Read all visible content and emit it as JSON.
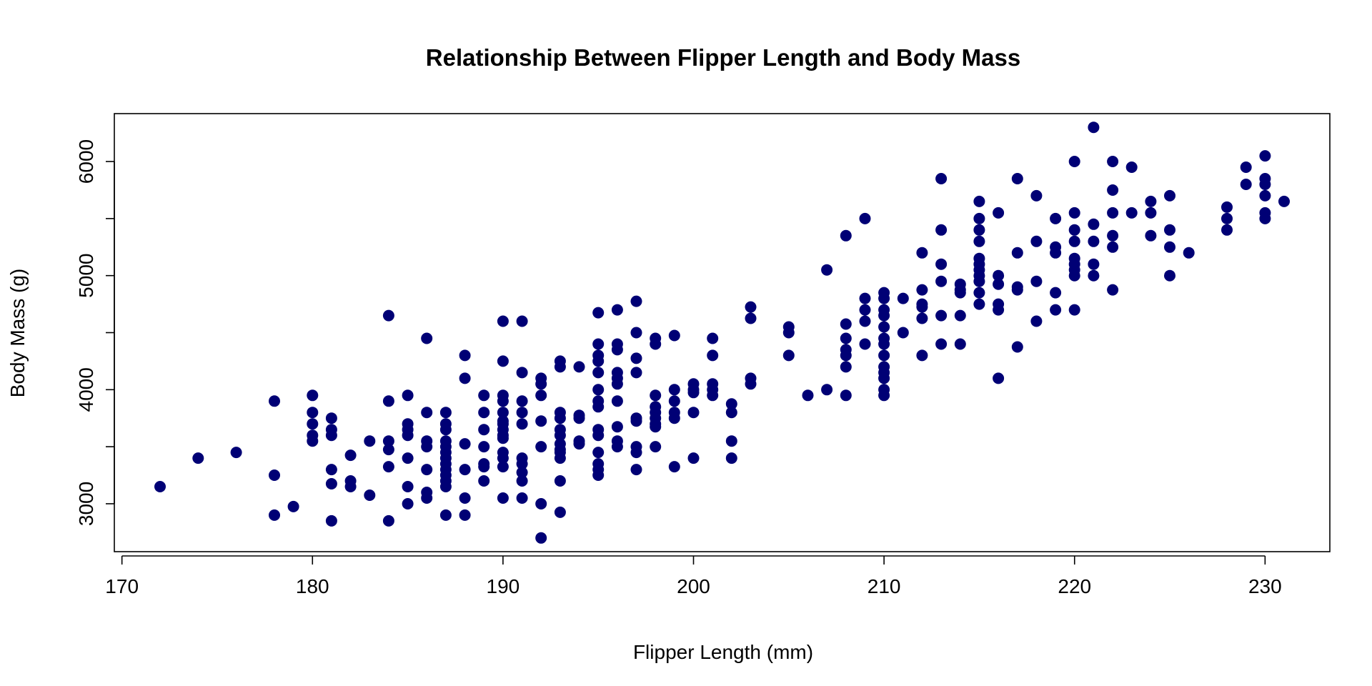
{
  "chart_data": {
    "type": "scatter",
    "title": "Relationship Between Flipper Length and Body Mass",
    "xlabel": "Flipper Length (mm)",
    "ylabel": "Body Mass (g)",
    "xlim": [
      169.6,
      233.4
    ],
    "ylim": [
      2580,
      6420
    ],
    "x_ticks": [
      170,
      180,
      190,
      200,
      210,
      220,
      230
    ],
    "y_ticks": [
      3000,
      4000,
      5000,
      6000
    ],
    "grid": false,
    "legend": "none",
    "marker_color": "#000075",
    "points": [
      [
        172,
        3150
      ],
      [
        174,
        3400
      ],
      [
        176,
        3450
      ],
      [
        178,
        3900
      ],
      [
        178,
        3250
      ],
      [
        178,
        2900
      ],
      [
        179,
        2975
      ],
      [
        180,
        3950
      ],
      [
        180,
        3800
      ],
      [
        180,
        3700
      ],
      [
        180,
        3600
      ],
      [
        180,
        3550
      ],
      [
        181,
        3750
      ],
      [
        181,
        3650
      ],
      [
        181,
        3600
      ],
      [
        181,
        3300
      ],
      [
        181,
        3175
      ],
      [
        181,
        2850
      ],
      [
        182,
        3425
      ],
      [
        182,
        3200
      ],
      [
        182,
        3150
      ],
      [
        183,
        3550
      ],
      [
        183,
        3075
      ],
      [
        184,
        4650
      ],
      [
        184,
        3900
      ],
      [
        184,
        3550
      ],
      [
        184,
        3475
      ],
      [
        184,
        3325
      ],
      [
        184,
        2850
      ],
      [
        185,
        3950
      ],
      [
        185,
        3700
      ],
      [
        185,
        3650
      ],
      [
        185,
        3600
      ],
      [
        185,
        3400
      ],
      [
        185,
        3150
      ],
      [
        185,
        3000
      ],
      [
        186,
        4450
      ],
      [
        186,
        3800
      ],
      [
        186,
        3550
      ],
      [
        186,
        3500
      ],
      [
        186,
        3300
      ],
      [
        186,
        3100
      ],
      [
        186,
        3050
      ],
      [
        187,
        3800
      ],
      [
        187,
        3700
      ],
      [
        187,
        3650
      ],
      [
        187,
        3550
      ],
      [
        187,
        3500
      ],
      [
        187,
        3450
      ],
      [
        187,
        3400
      ],
      [
        187,
        3350
      ],
      [
        187,
        3300
      ],
      [
        187,
        3250
      ],
      [
        187,
        3200
      ],
      [
        187,
        3150
      ],
      [
        187,
        2900
      ],
      [
        188,
        4300
      ],
      [
        188,
        4100
      ],
      [
        188,
        3525
      ],
      [
        188,
        3300
      ],
      [
        188,
        3050
      ],
      [
        188,
        2900
      ],
      [
        189,
        3950
      ],
      [
        189,
        3800
      ],
      [
        189,
        3650
      ],
      [
        189,
        3500
      ],
      [
        189,
        3350
      ],
      [
        189,
        3325
      ],
      [
        189,
        3200
      ],
      [
        190,
        4600
      ],
      [
        190,
        4250
      ],
      [
        190,
        3950
      ],
      [
        190,
        3900
      ],
      [
        190,
        3800
      ],
      [
        190,
        3725
      ],
      [
        190,
        3700
      ],
      [
        190,
        3650
      ],
      [
        190,
        3600
      ],
      [
        190,
        3575
      ],
      [
        190,
        3450
      ],
      [
        190,
        3400
      ],
      [
        190,
        3325
      ],
      [
        190,
        3050
      ],
      [
        191,
        4600
      ],
      [
        191,
        4150
      ],
      [
        191,
        3900
      ],
      [
        191,
        3800
      ],
      [
        191,
        3700
      ],
      [
        191,
        3400
      ],
      [
        191,
        3350
      ],
      [
        191,
        3275
      ],
      [
        191,
        3200
      ],
      [
        191,
        3050
      ],
      [
        192,
        4100
      ],
      [
        192,
        4050
      ],
      [
        192,
        3950
      ],
      [
        192,
        3725
      ],
      [
        192,
        3500
      ],
      [
        192,
        3000
      ],
      [
        192,
        2700
      ],
      [
        193,
        4250
      ],
      [
        193,
        4200
      ],
      [
        193,
        3800
      ],
      [
        193,
        3750
      ],
      [
        193,
        3650
      ],
      [
        193,
        3600
      ],
      [
        193,
        3525
      ],
      [
        193,
        3475
      ],
      [
        193,
        3450
      ],
      [
        193,
        3400
      ],
      [
        193,
        3200
      ],
      [
        193,
        2925
      ],
      [
        194,
        4200
      ],
      [
        194,
        3775
      ],
      [
        194,
        3750
      ],
      [
        194,
        3550
      ],
      [
        194,
        3525
      ],
      [
        195,
        4675
      ],
      [
        195,
        4400
      ],
      [
        195,
        4300
      ],
      [
        195,
        4250
      ],
      [
        195,
        4150
      ],
      [
        195,
        4000
      ],
      [
        195,
        3900
      ],
      [
        195,
        3850
      ],
      [
        195,
        3650
      ],
      [
        195,
        3600
      ],
      [
        195,
        3450
      ],
      [
        195,
        3350
      ],
      [
        195,
        3300
      ],
      [
        195,
        3250
      ],
      [
        196,
        4700
      ],
      [
        196,
        4400
      ],
      [
        196,
        4350
      ],
      [
        196,
        4150
      ],
      [
        196,
        4100
      ],
      [
        196,
        4050
      ],
      [
        196,
        3900
      ],
      [
        196,
        3675
      ],
      [
        196,
        3550
      ],
      [
        196,
        3500
      ],
      [
        197,
        4775
      ],
      [
        197,
        4500
      ],
      [
        197,
        4275
      ],
      [
        197,
        4150
      ],
      [
        197,
        3750
      ],
      [
        197,
        3725
      ],
      [
        197,
        3500
      ],
      [
        197,
        3450
      ],
      [
        197,
        3300
      ],
      [
        198,
        4450
      ],
      [
        198,
        4400
      ],
      [
        198,
        3950
      ],
      [
        198,
        3850
      ],
      [
        198,
        3800
      ],
      [
        198,
        3750
      ],
      [
        198,
        3700
      ],
      [
        198,
        3675
      ],
      [
        198,
        3500
      ],
      [
        199,
        4475
      ],
      [
        199,
        4000
      ],
      [
        199,
        3900
      ],
      [
        199,
        3800
      ],
      [
        199,
        3750
      ],
      [
        199,
        3325
      ],
      [
        200,
        4050
      ],
      [
        200,
        4000
      ],
      [
        200,
        3975
      ],
      [
        200,
        3800
      ],
      [
        200,
        3400
      ],
      [
        201,
        4450
      ],
      [
        201,
        4300
      ],
      [
        201,
        4050
      ],
      [
        201,
        4000
      ],
      [
        201,
        3950
      ],
      [
        202,
        3875
      ],
      [
        202,
        3800
      ],
      [
        202,
        3550
      ],
      [
        202,
        3400
      ],
      [
        203,
        4725
      ],
      [
        203,
        4625
      ],
      [
        203,
        4100
      ],
      [
        203,
        4050
      ],
      [
        205,
        4550
      ],
      [
        205,
        4500
      ],
      [
        205,
        4300
      ],
      [
        206,
        3950
      ],
      [
        207,
        5050
      ],
      [
        207,
        4000
      ],
      [
        208,
        5350
      ],
      [
        208,
        4575
      ],
      [
        208,
        4450
      ],
      [
        208,
        4350
      ],
      [
        208,
        4300
      ],
      [
        208,
        4200
      ],
      [
        208,
        3950
      ],
      [
        209,
        5500
      ],
      [
        209,
        4800
      ],
      [
        209,
        4700
      ],
      [
        209,
        4600
      ],
      [
        209,
        4400
      ],
      [
        210,
        4850
      ],
      [
        210,
        4800
      ],
      [
        210,
        4700
      ],
      [
        210,
        4650
      ],
      [
        210,
        4550
      ],
      [
        210,
        4450
      ],
      [
        210,
        4400
      ],
      [
        210,
        4300
      ],
      [
        210,
        4200
      ],
      [
        210,
        4150
      ],
      [
        210,
        4100
      ],
      [
        210,
        4000
      ],
      [
        210,
        3950
      ],
      [
        211,
        4800
      ],
      [
        211,
        4500
      ],
      [
        212,
        5200
      ],
      [
        212,
        4875
      ],
      [
        212,
        4750
      ],
      [
        212,
        4725
      ],
      [
        212,
        4625
      ],
      [
        212,
        4300
      ],
      [
        213,
        5850
      ],
      [
        213,
        5400
      ],
      [
        213,
        5100
      ],
      [
        213,
        4950
      ],
      [
        213,
        4650
      ],
      [
        213,
        4400
      ],
      [
        214,
        4925
      ],
      [
        214,
        4875
      ],
      [
        214,
        4850
      ],
      [
        214,
        4650
      ],
      [
        214,
        4400
      ],
      [
        215,
        5650
      ],
      [
        215,
        5500
      ],
      [
        215,
        5400
      ],
      [
        215,
        5300
      ],
      [
        215,
        5150
      ],
      [
        215,
        5100
      ],
      [
        215,
        5050
      ],
      [
        215,
        5000
      ],
      [
        215,
        4950
      ],
      [
        215,
        4850
      ],
      [
        215,
        4750
      ],
      [
        216,
        5550
      ],
      [
        216,
        5000
      ],
      [
        216,
        4925
      ],
      [
        216,
        4750
      ],
      [
        216,
        4700
      ],
      [
        216,
        4100
      ],
      [
        217,
        5850
      ],
      [
        217,
        5200
      ],
      [
        217,
        4900
      ],
      [
        217,
        4875
      ],
      [
        217,
        4375
      ],
      [
        218,
        5700
      ],
      [
        218,
        5300
      ],
      [
        218,
        4950
      ],
      [
        218,
        4600
      ],
      [
        219,
        5500
      ],
      [
        219,
        5250
      ],
      [
        219,
        5200
      ],
      [
        219,
        4850
      ],
      [
        219,
        4700
      ],
      [
        220,
        6000
      ],
      [
        220,
        5550
      ],
      [
        220,
        5400
      ],
      [
        220,
        5300
      ],
      [
        220,
        5150
      ],
      [
        220,
        5100
      ],
      [
        220,
        5050
      ],
      [
        220,
        5000
      ],
      [
        220,
        4700
      ],
      [
        221,
        6300
      ],
      [
        221,
        5450
      ],
      [
        221,
        5300
      ],
      [
        221,
        5100
      ],
      [
        221,
        5000
      ],
      [
        222,
        6000
      ],
      [
        222,
        5750
      ],
      [
        222,
        5550
      ],
      [
        222,
        5350
      ],
      [
        222,
        5250
      ],
      [
        222,
        4875
      ],
      [
        223,
        5950
      ],
      [
        223,
        5550
      ],
      [
        224,
        5650
      ],
      [
        224,
        5550
      ],
      [
        224,
        5350
      ],
      [
        225,
        5700
      ],
      [
        225,
        5400
      ],
      [
        225,
        5250
      ],
      [
        225,
        5000
      ],
      [
        226,
        5200
      ],
      [
        228,
        5600
      ],
      [
        228,
        5500
      ],
      [
        228,
        5400
      ],
      [
        229,
        5950
      ],
      [
        229,
        5800
      ],
      [
        230,
        6050
      ],
      [
        230,
        5850
      ],
      [
        230,
        5800
      ],
      [
        230,
        5700
      ],
      [
        230,
        5550
      ],
      [
        230,
        5500
      ],
      [
        231,
        5650
      ]
    ]
  }
}
